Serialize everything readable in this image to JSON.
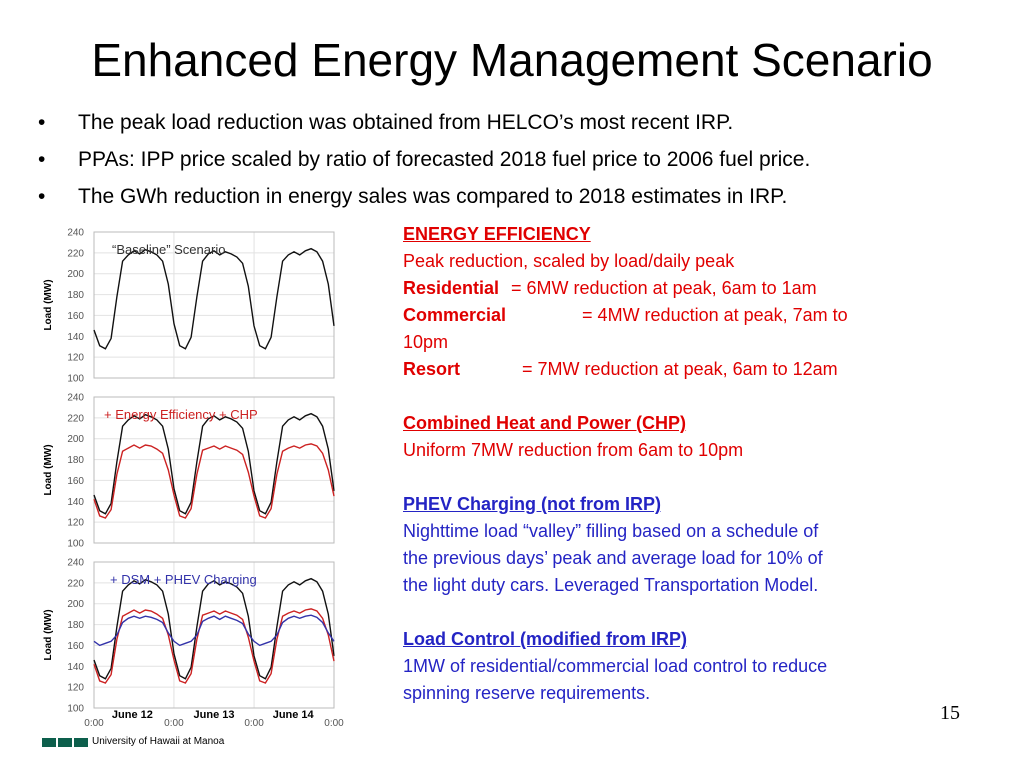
{
  "title": "Enhanced Energy Management Scenario",
  "bullets": [
    "The peak load reduction was obtained from HELCO’s most recent IRP.",
    "PPAs: IPP price scaled by ratio of forecasted 2018 fuel price to 2006 fuel price.",
    "The GWh reduction in energy sales was compared to 2018 estimates in IRP."
  ],
  "bullet_symbol": "•",
  "right": {
    "ee_heading": "ENERGY EFFICIENCY",
    "ee_desc": "Peak reduction, scaled by load/daily peak",
    "residential_label": "Residential",
    "residential_text": "= 6MW reduction at peak, 6am to 1am",
    "commercial_label": "Commercial",
    "commercial_text": "= 4MW reduction at peak, 7am to",
    "commercial_text2": "10pm",
    "resort_label": "Resort",
    "resort_text": "= 7MW reduction at peak, 6am to 12am",
    "chp_heading": "Combined Heat and Power (CHP)",
    "chp_desc": "Uniform 7MW reduction from 6am to 10pm",
    "phev_heading": "PHEV Charging (not from IRP)",
    "phev_desc": [
      "Nighttime load “valley” filling based on a schedule of",
      "the previous days’ peak and average load for 10% of",
      "the light duty cars.  Leveraged Transportation Model."
    ],
    "lc_heading": "Load Control (modified from IRP)",
    "lc_desc": [
      "1MW of residential/commercial load control to reduce",
      "spinning reserve requirements."
    ]
  },
  "page_number": "15",
  "footer": "University of Hawaii at Manoa",
  "colors": {
    "red": "#e00000",
    "blue": "#2424c4",
    "footer_green": "#0d5f4c"
  },
  "chart_data": [
    {
      "type": "line",
      "title": "“Baseline” Scenario",
      "ylabel": "Load (MW)",
      "ylim": [
        100,
        240
      ],
      "yticks": [
        240,
        220,
        200,
        180,
        160,
        140,
        120,
        100
      ],
      "xticks": [],
      "series": [
        {
          "color": "#111111",
          "values": [
            146,
            131,
            128,
            138,
            178,
            212,
            218,
            222,
            219,
            223,
            221,
            218,
            212,
            190,
            152,
            131,
            128,
            139,
            178,
            212,
            219,
            222,
            218,
            221,
            219,
            216,
            210,
            188,
            150,
            131,
            128,
            139,
            178,
            212,
            218,
            221,
            218,
            222,
            224,
            221,
            212,
            190,
            150
          ]
        }
      ]
    },
    {
      "type": "line",
      "title": "+ Energy Efficiency + CHP",
      "ylabel": "Load (MW)",
      "ylim": [
        100,
        240
      ],
      "yticks": [
        240,
        220,
        200,
        180,
        160,
        140,
        120,
        100
      ],
      "xticks": [],
      "series": [
        {
          "color": "#111111",
          "values": [
            146,
            131,
            128,
            138,
            178,
            212,
            218,
            222,
            219,
            223,
            221,
            218,
            212,
            190,
            152,
            131,
            128,
            139,
            178,
            212,
            219,
            222,
            218,
            221,
            219,
            216,
            210,
            188,
            150,
            131,
            128,
            139,
            178,
            212,
            218,
            221,
            218,
            222,
            224,
            221,
            212,
            190,
            150
          ]
        },
        {
          "color": "#cc2222",
          "values": [
            142,
            126,
            124,
            132,
            166,
            188,
            191,
            194,
            191,
            194,
            193,
            190,
            186,
            170,
            146,
            126,
            124,
            133,
            166,
            189,
            191,
            193,
            190,
            193,
            191,
            189,
            185,
            168,
            145,
            126,
            124,
            133,
            166,
            188,
            191,
            193,
            191,
            194,
            195,
            193,
            186,
            170,
            145
          ]
        }
      ]
    },
    {
      "type": "line",
      "title": "+ DSM + PHEV Charging",
      "ylabel": "Load (MW)",
      "ylim": [
        100,
        240
      ],
      "yticks": [
        240,
        220,
        200,
        180,
        160,
        140,
        120,
        100
      ],
      "xticks": [
        "0:00",
        "June 12",
        "0:00",
        "June 13",
        "0:00",
        "June 14",
        "0:00"
      ],
      "series": [
        {
          "color": "#111111",
          "values": [
            146,
            131,
            128,
            138,
            178,
            212,
            218,
            222,
            219,
            223,
            221,
            218,
            212,
            190,
            152,
            131,
            128,
            139,
            178,
            212,
            219,
            222,
            218,
            221,
            219,
            216,
            210,
            188,
            150,
            131,
            128,
            139,
            178,
            212,
            218,
            221,
            218,
            222,
            224,
            221,
            212,
            190,
            150
          ]
        },
        {
          "color": "#cc2222",
          "values": [
            142,
            126,
            124,
            132,
            166,
            188,
            191,
            194,
            191,
            194,
            193,
            190,
            186,
            170,
            146,
            126,
            124,
            133,
            166,
            189,
            191,
            193,
            190,
            193,
            191,
            189,
            185,
            168,
            145,
            126,
            124,
            133,
            166,
            188,
            191,
            193,
            191,
            194,
            195,
            193,
            186,
            170,
            145
          ]
        },
        {
          "color": "#3333aa",
          "values": [
            164,
            160,
            162,
            164,
            170,
            182,
            186,
            188,
            186,
            188,
            187,
            185,
            182,
            172,
            164,
            160,
            162,
            164,
            170,
            183,
            186,
            188,
            185,
            188,
            186,
            184,
            181,
            171,
            164,
            160,
            162,
            164,
            170,
            182,
            186,
            188,
            186,
            188,
            189,
            187,
            182,
            172,
            164
          ]
        }
      ]
    }
  ]
}
